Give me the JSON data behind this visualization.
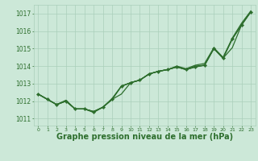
{
  "background_color": "#cce8d8",
  "grid_color": "#aacfba",
  "line_color": "#2d6e2d",
  "xlabel": "Graphe pression niveau de la mer (hPa)",
  "xlabel_fontsize": 7,
  "xlabel_color": "#2d6e2d",
  "ylabel_ticks": [
    1011,
    1012,
    1013,
    1014,
    1015,
    1016,
    1017
  ],
  "xticks": [
    0,
    1,
    2,
    3,
    4,
    5,
    6,
    7,
    8,
    9,
    10,
    11,
    12,
    13,
    14,
    15,
    16,
    17,
    18,
    19,
    20,
    21,
    22,
    23
  ],
  "ylim": [
    1010.6,
    1017.5
  ],
  "xlim": [
    -0.5,
    23.5
  ],
  "series": [
    {
      "data": [
        1012.4,
        1012.1,
        1011.8,
        1012.0,
        1011.55,
        1011.55,
        1011.4,
        1011.65,
        1012.1,
        1012.4,
        1013.05,
        1013.2,
        1013.55,
        1013.7,
        1013.8,
        1013.95,
        1013.8,
        1013.95,
        1014.05,
        1015.0,
        1014.45,
        1015.05,
        1016.35,
        1017.1
      ],
      "marker": false,
      "linewidth": 0.9
    },
    {
      "data": [
        1012.4,
        1012.1,
        1011.8,
        1012.0,
        1011.55,
        1011.55,
        1011.4,
        1011.65,
        1012.1,
        1012.85,
        1013.05,
        1013.2,
        1013.55,
        1013.7,
        1013.8,
        1013.95,
        1013.8,
        1013.95,
        1014.05,
        1015.0,
        1014.45,
        1015.55,
        1016.35,
        1017.1
      ],
      "marker": true,
      "linewidth": 0.9
    },
    {
      "data": [
        1012.4,
        1012.1,
        1011.8,
        1012.0,
        1011.55,
        1011.55,
        1011.4,
        1011.65,
        1012.1,
        1012.85,
        1013.05,
        1013.2,
        1013.55,
        1013.7,
        1013.8,
        1013.95,
        1013.8,
        1014.0,
        1014.05,
        1015.0,
        1014.45,
        1015.55,
        1016.35,
        1017.1
      ],
      "marker": false,
      "linewidth": 0.9
    },
    {
      "data": [
        1012.4,
        1012.1,
        1011.8,
        1012.05,
        1011.55,
        1011.55,
        1011.35,
        1011.65,
        1012.15,
        1012.85,
        1013.05,
        1013.2,
        1013.55,
        1013.7,
        1013.8,
        1014.0,
        1013.85,
        1014.05,
        1014.15,
        1015.05,
        1014.5,
        1015.6,
        1016.45,
        1017.15
      ],
      "marker": false,
      "linewidth": 0.9
    }
  ]
}
